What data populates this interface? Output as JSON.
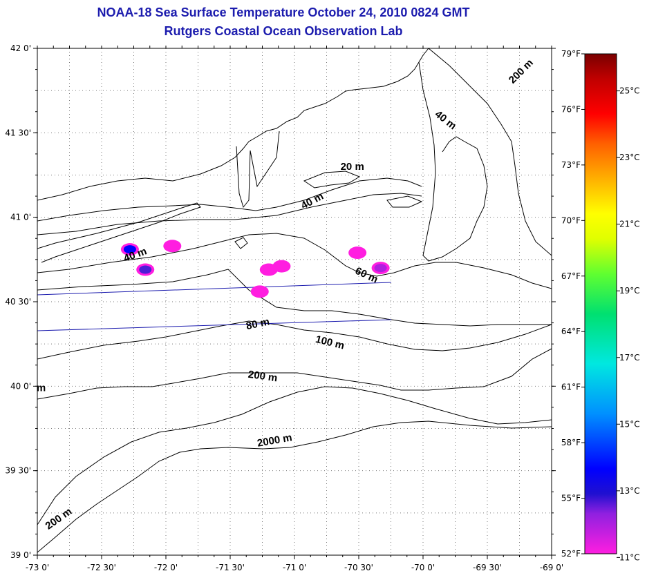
{
  "title": "NOAA-18 Sea Surface Temperature October 24, 2010 0824 GMT",
  "subtitle": "Rutgers Coastal Ocean Observation Lab",
  "map": {
    "lon_range": [
      -73.0,
      -69.0
    ],
    "lat_range": [
      39.0,
      42.0
    ],
    "x_ticks": [
      {
        "lon": -73.0,
        "label": "-73 0'"
      },
      {
        "lon": -72.5,
        "label": "-72 30'"
      },
      {
        "lon": -72.0,
        "label": "-72 0'"
      },
      {
        "lon": -71.5,
        "label": "-71 30'"
      },
      {
        "lon": -71.0,
        "label": "-71 0'"
      },
      {
        "lon": -70.5,
        "label": "-70 30'"
      },
      {
        "lon": -70.0,
        "label": "-70 0'"
      },
      {
        "lon": -69.5,
        "label": "-69 30'"
      },
      {
        "lon": -69.0,
        "label": "-69 0'"
      }
    ],
    "y_ticks": [
      {
        "lat": 42.0,
        "label": "42 0'"
      },
      {
        "lat": 41.5,
        "label": "41 30'"
      },
      {
        "lat": 41.0,
        "label": "41 0'"
      },
      {
        "lat": 40.5,
        "label": "40 30'"
      },
      {
        "lat": 40.0,
        "label": "40 0'"
      },
      {
        "lat": 39.5,
        "label": "39 30'"
      },
      {
        "lat": 39.0,
        "label": "39 0'"
      }
    ],
    "grid": "dotted",
    "contour_labels": [
      {
        "text": "200 m",
        "lon": -69.22,
        "lat": 41.85,
        "angle": -45
      },
      {
        "text": "40 m",
        "lon": -69.84,
        "lat": 41.56,
        "angle": 38
      },
      {
        "text": "20 m",
        "lon": -70.55,
        "lat": 41.28,
        "angle": 0
      },
      {
        "text": "40 m",
        "lon": -70.85,
        "lat": 41.08,
        "angle": -28
      },
      {
        "text": "40 m",
        "lon": -72.23,
        "lat": 40.76,
        "angle": -20
      },
      {
        "text": "60 m",
        "lon": -70.45,
        "lat": 40.64,
        "angle": 25
      },
      {
        "text": "80 m",
        "lon": -71.28,
        "lat": 40.35,
        "angle": -12
      },
      {
        "text": "100 m",
        "lon": -70.73,
        "lat": 40.24,
        "angle": 14
      },
      {
        "text": "200 m",
        "lon": -71.25,
        "lat": 40.04,
        "angle": 8
      },
      {
        "text": "2000 m",
        "lon": -71.15,
        "lat": 39.66,
        "angle": -10
      },
      {
        "text": "200 m",
        "lon": -72.82,
        "lat": 39.2,
        "angle": -35
      },
      {
        "text": "m",
        "lon": -72.97,
        "lat": 39.97,
        "angle": 0
      }
    ],
    "sst_patches": [
      {
        "lon": -72.28,
        "lat": 40.81,
        "temp_c": 14.0
      },
      {
        "lon": -72.16,
        "lat": 40.69,
        "temp_c": 13.5
      },
      {
        "lon": -71.95,
        "lat": 40.83,
        "temp_c": 11.0
      },
      {
        "lon": -71.27,
        "lat": 40.56,
        "temp_c": 11.0
      },
      {
        "lon": -71.1,
        "lat": 40.71,
        "temp_c": 11.0
      },
      {
        "lon": -71.2,
        "lat": 40.69,
        "temp_c": 11.0
      },
      {
        "lon": -70.51,
        "lat": 40.79,
        "temp_c": 11.0
      },
      {
        "lon": -70.33,
        "lat": 40.7,
        "temp_c": 12.5
      }
    ]
  },
  "colorbar": {
    "f_labels": [
      {
        "value": 79,
        "label": "79°F"
      },
      {
        "value": 76,
        "label": "76°F"
      },
      {
        "value": 73,
        "label": "73°F"
      },
      {
        "value": 70,
        "label": "70°F"
      },
      {
        "value": 67,
        "label": "67°F"
      },
      {
        "value": 64,
        "label": "64°F"
      },
      {
        "value": 61,
        "label": "61°F"
      },
      {
        "value": 58,
        "label": "58°F"
      },
      {
        "value": 55,
        "label": "55°F"
      },
      {
        "value": 52,
        "label": "52°F"
      }
    ],
    "c_labels": [
      {
        "value": 25,
        "label": "25°C"
      },
      {
        "value": 23,
        "label": "23°C"
      },
      {
        "value": 21,
        "label": "21°C"
      },
      {
        "value": 19,
        "label": "19°C"
      },
      {
        "value": 17,
        "label": "17°C"
      },
      {
        "value": 15,
        "label": "15°C"
      },
      {
        "value": 13,
        "label": "13°C"
      },
      {
        "value": 11,
        "label": "11°C"
      }
    ],
    "colors": [
      "#ff1ee0",
      "#b01ee0",
      "#4b1ed6",
      "#0000ff",
      "#0090ff",
      "#00e0e0",
      "#00e080",
      "#40ff40",
      "#c8ff00",
      "#ffff00",
      "#ffb000",
      "#ff7000",
      "#ff2000",
      "#e00000",
      "#a00000",
      "#7a0000"
    ]
  }
}
